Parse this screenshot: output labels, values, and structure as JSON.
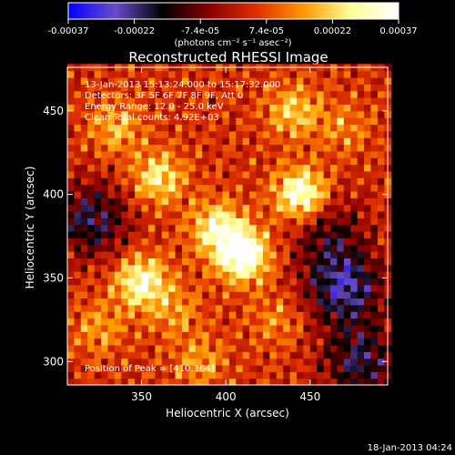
{
  "chart_data": {
    "type": "heatmap",
    "title": "Reconstructed RHESSI Image",
    "xlabel": "Heliocentric X (arcsec)",
    "ylabel": "Heliocentric Y (arcsec)",
    "xlim": [
      306,
      496
    ],
    "ylim": [
      286,
      476
    ],
    "x_ticks": [
      "350",
      "400",
      "450"
    ],
    "x_tick_values": [
      350,
      400,
      450
    ],
    "y_ticks": [
      "300",
      "350",
      "400",
      "450"
    ],
    "y_tick_values": [
      300,
      350,
      400,
      450
    ],
    "colorbar": {
      "range": [
        -0.00037,
        0.00037
      ],
      "tick_labels": [
        "-0.00037",
        "-0.00022",
        "-7.4e-05",
        "7.4e-05",
        "0.00022",
        "0.00037"
      ],
      "units": "(photons cm⁻² s⁻¹ asec⁻²)",
      "colors": [
        "#0000ff",
        "#6a4cc8",
        "#000000",
        "#8a0000",
        "#e03000",
        "#ff9a00",
        "#ffff9a",
        "#ffffff"
      ]
    },
    "annotations": [
      "13-Jan-2013 15:13:24.000 to 15:17:32.000",
      "Detectors: 3F 5F 6F 7F 8F 9F, Att 0",
      "Energy Range: 12.0 - 25.0 keV",
      "Clean     Total counts: 4.92E+03"
    ],
    "peak_text": "Position of Peak = [410,364]",
    "peak_position": [
      410,
      364
    ],
    "peak_value": 0.00037,
    "sources": [
      {
        "x": 410,
        "y": 364,
        "value": 0.00037
      },
      {
        "x": 445,
        "y": 400,
        "value": 0.00034
      },
      {
        "x": 350,
        "y": 348,
        "value": 0.00028
      },
      {
        "x": 395,
        "y": 380,
        "value": 0.00025
      },
      {
        "x": 360,
        "y": 410,
        "value": 0.00022
      },
      {
        "x": 440,
        "y": 450,
        "value": 0.00018
      },
      {
        "x": 335,
        "y": 440,
        "value": 0.00015
      },
      {
        "x": 325,
        "y": 320,
        "value": 0.00012
      },
      {
        "x": 385,
        "y": 300,
        "value": 0.00012
      },
      {
        "x": 430,
        "y": 325,
        "value": 0.0001
      },
      {
        "x": 470,
        "y": 440,
        "value": 0.0001
      },
      {
        "x": 370,
        "y": 330,
        "value": 0.00011
      }
    ],
    "negative_regions": [
      {
        "x": 470,
        "y": 345,
        "value": -0.00028
      },
      {
        "x": 480,
        "y": 300,
        "value": -0.00022
      },
      {
        "x": 320,
        "y": 385,
        "value": -0.00022
      },
      {
        "x": 460,
        "y": 380,
        "value": -0.00015
      }
    ]
  },
  "footer": {
    "timestamp": "18-Jan-2013 04:24"
  }
}
